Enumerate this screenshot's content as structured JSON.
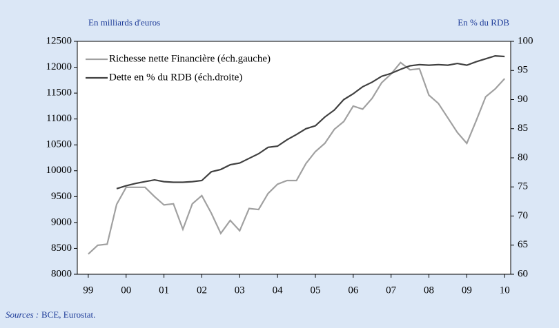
{
  "chart_data": {
    "type": "line",
    "y_axis_label": "En milliards d'euros",
    "y2_axis_label": "En % du RDB",
    "sources_label": "Sources :",
    "sources": "BCE, Eurostat.",
    "x": [
      1999,
      1999.25,
      1999.5,
      1999.75,
      2000,
      2000.25,
      2000.5,
      2000.75,
      2001,
      2001.25,
      2001.5,
      2001.75,
      2002,
      2002.25,
      2002.5,
      2002.75,
      2003,
      2003.25,
      2003.5,
      2003.75,
      2004,
      2004.25,
      2004.5,
      2004.75,
      2005,
      2005.25,
      2005.5,
      2005.75,
      2006,
      2006.25,
      2006.5,
      2006.75,
      2007,
      2007.25,
      2007.5,
      2007.75,
      2008,
      2008.25,
      2008.5,
      2008.75,
      2009,
      2009.25,
      2009.5,
      2009.75,
      2010
    ],
    "series": [
      {
        "name": "Richesse nette Financière (éch.gauche)",
        "color": "#a0a0a0",
        "values": [
          8390,
          8560,
          8580,
          9350,
          9680,
          9680,
          9680,
          9500,
          9340,
          9360,
          8870,
          9360,
          9520,
          9180,
          8790,
          9040,
          8840,
          9270,
          9250,
          9560,
          9740,
          9810,
          9810,
          10140,
          10370,
          10530,
          10800,
          10950,
          11250,
          11190,
          11400,
          11700,
          11870,
          12090,
          11950,
          11970,
          11460,
          11300,
          11020,
          10740,
          10530,
          10970,
          11430,
          11580,
          11780
        ]
      },
      {
        "name": "Dette en % du RDB (éch.droite)",
        "color": "#404040",
        "axis": "y2",
        "values": [
          null,
          null,
          null,
          74.7,
          75.2,
          75.6,
          75.9,
          76.2,
          75.9,
          75.8,
          75.8,
          75.9,
          76.1,
          77.6,
          78.0,
          78.8,
          79.1,
          79.9,
          80.7,
          81.8,
          82.0,
          83.1,
          84.0,
          85.0,
          85.5,
          87.0,
          88.2,
          90.0,
          91.0,
          92.2,
          93.0,
          94.0,
          94.5,
          95.2,
          95.8,
          96.0,
          95.9,
          96.0,
          95.9,
          96.2,
          95.9,
          96.5,
          97.0,
          97.5,
          97.4
        ]
      }
    ],
    "xlim": [
      1998.71,
      2010.16
    ],
    "xticks": [
      {
        "value": 1999,
        "label": "99"
      },
      {
        "value": 2000,
        "label": "00"
      },
      {
        "value": 2001,
        "label": "01"
      },
      {
        "value": 2002,
        "label": "02"
      },
      {
        "value": 2003,
        "label": "03"
      },
      {
        "value": 2004,
        "label": "04"
      },
      {
        "value": 2005,
        "label": "05"
      },
      {
        "value": 2006,
        "label": "06"
      },
      {
        "value": 2007,
        "label": "07"
      },
      {
        "value": 2008,
        "label": "08"
      },
      {
        "value": 2009,
        "label": "09"
      },
      {
        "value": 2010,
        "label": "10"
      }
    ],
    "ylim": [
      8000,
      12500
    ],
    "yticks": [
      8000,
      8500,
      9000,
      9500,
      10000,
      10500,
      11000,
      11500,
      12000,
      12500
    ],
    "y2lim": [
      60,
      100
    ],
    "y2ticks": [
      60,
      65,
      70,
      75,
      80,
      85,
      90,
      95,
      100
    ],
    "legend": "upper left"
  }
}
